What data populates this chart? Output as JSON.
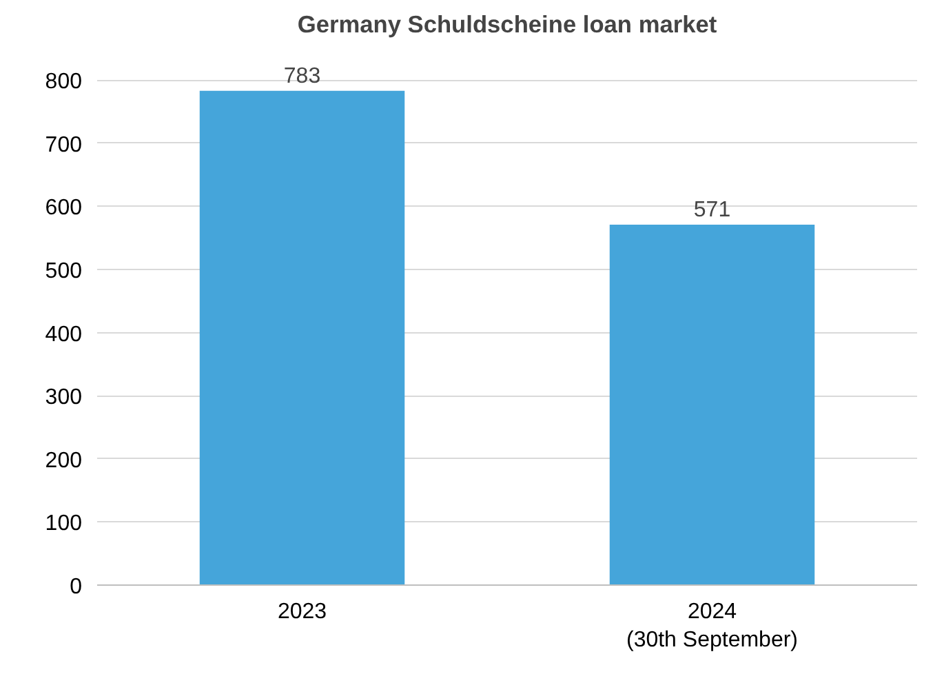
{
  "chart_data": {
    "type": "bar",
    "title": "Germany Schuldscheine loan market",
    "categories": [
      "2023",
      "2024\n(30th September)"
    ],
    "values": [
      783,
      571
    ],
    "color": "#45a5da",
    "ylim": [
      0,
      800
    ],
    "yticks": [
      0,
      100,
      200,
      300,
      400,
      500,
      600,
      700,
      800
    ],
    "grid": "y",
    "data_labels": true
  }
}
